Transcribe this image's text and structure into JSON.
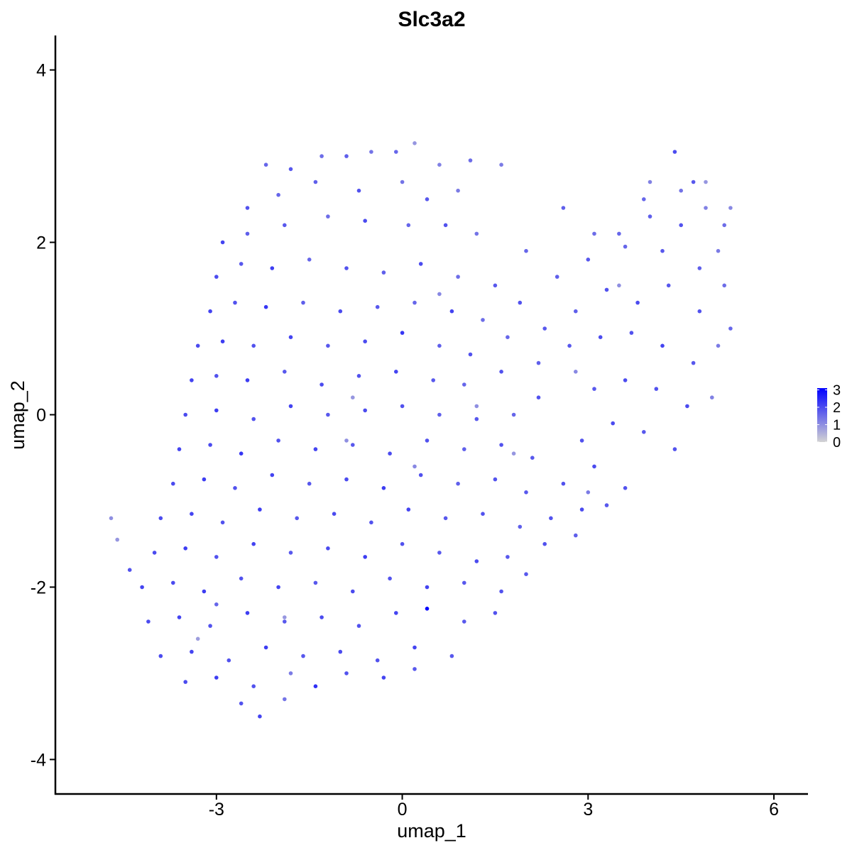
{
  "chart_data": {
    "type": "scatter",
    "title": "Slc3a2",
    "xlabel": "umap_1",
    "ylabel": "umap_2",
    "xlim": [
      -5.6,
      6.55
    ],
    "ylim": [
      -4.4,
      4.4
    ],
    "x_ticks": [
      -3,
      0,
      3,
      6
    ],
    "y_ticks": [
      -4,
      -2,
      0,
      2,
      4
    ],
    "x_tick_labels": [
      "-3",
      "0",
      "3",
      "6"
    ],
    "y_tick_labels": [
      "-4",
      "-2",
      "0",
      "2",
      "4"
    ],
    "grid": false,
    "legend": {
      "placement": "right",
      "type": "colorbar",
      "range": [
        0,
        3.1
      ],
      "ticks": [
        0,
        1,
        2,
        3
      ],
      "tick_labels": [
        "0",
        "1",
        "2",
        "3"
      ],
      "colors": {
        "low": "#d3d3d3",
        "high": "#0000ff"
      }
    },
    "point_color_scale": "expression",
    "points": [
      [
        -2.2,
        2.9,
        1.6
      ],
      [
        -1.8,
        2.85,
        1.8
      ],
      [
        -1.3,
        3.0,
        1.5
      ],
      [
        -0.9,
        3.0,
        1.7
      ],
      [
        -0.5,
        3.05,
        1.4
      ],
      [
        -0.1,
        3.05,
        1.6
      ],
      [
        0.2,
        3.15,
        0.9
      ],
      [
        0.6,
        2.9,
        1.2
      ],
      [
        1.1,
        2.95,
        1.5
      ],
      [
        1.6,
        2.9,
        1.3
      ],
      [
        -2.5,
        2.4,
        1.9
      ],
      [
        -2.0,
        2.55,
        1.6
      ],
      [
        -1.4,
        2.7,
        1.7
      ],
      [
        -0.7,
        2.6,
        1.9
      ],
      [
        0.0,
        2.7,
        1.4
      ],
      [
        0.4,
        2.5,
        1.8
      ],
      [
        0.9,
        2.6,
        1.3
      ],
      [
        -2.9,
        2.0,
        2.1
      ],
      [
        -2.5,
        2.1,
        1.7
      ],
      [
        -1.9,
        2.2,
        1.8
      ],
      [
        -1.2,
        2.3,
        1.5
      ],
      [
        -0.6,
        2.25,
        2.0
      ],
      [
        0.1,
        2.2,
        1.6
      ],
      [
        0.7,
        2.2,
        1.9
      ],
      [
        1.2,
        2.1,
        1.4
      ],
      [
        -3.0,
        1.6,
        2.0
      ],
      [
        -2.6,
        1.75,
        1.8
      ],
      [
        -2.1,
        1.7,
        2.2
      ],
      [
        -1.5,
        1.8,
        1.6
      ],
      [
        -0.9,
        1.7,
        1.9
      ],
      [
        -0.3,
        1.65,
        1.7
      ],
      [
        0.3,
        1.75,
        2.0
      ],
      [
        0.9,
        1.6,
        1.5
      ],
      [
        1.5,
        1.5,
        1.8
      ],
      [
        2.0,
        1.9,
        1.6
      ],
      [
        -3.1,
        1.2,
        2.1
      ],
      [
        -2.7,
        1.3,
        1.9
      ],
      [
        -2.2,
        1.25,
        2.3
      ],
      [
        -1.6,
        1.3,
        1.7
      ],
      [
        -1.0,
        1.2,
        2.0
      ],
      [
        -0.4,
        1.25,
        1.8
      ],
      [
        0.2,
        1.3,
        1.6
      ],
      [
        0.8,
        1.2,
        2.1
      ],
      [
        1.3,
        1.1,
        1.5
      ],
      [
        1.9,
        1.3,
        1.9
      ],
      [
        2.5,
        1.6,
        1.7
      ],
      [
        3.0,
        1.8,
        1.8
      ],
      [
        3.5,
        2.1,
        1.6
      ],
      [
        4.0,
        2.3,
        1.7
      ],
      [
        4.5,
        2.6,
        1.4
      ],
      [
        4.9,
        2.4,
        1.2
      ],
      [
        5.2,
        2.2,
        1.5
      ],
      [
        4.4,
        3.05,
        2.0
      ],
      [
        4.7,
        2.7,
        1.8
      ],
      [
        5.1,
        1.9,
        1.3
      ],
      [
        -3.3,
        0.8,
        2.0
      ],
      [
        -2.9,
        0.85,
        2.2
      ],
      [
        -2.4,
        0.8,
        1.9
      ],
      [
        -1.8,
        0.9,
        2.1
      ],
      [
        -1.2,
        0.8,
        1.8
      ],
      [
        -0.6,
        0.85,
        2.0
      ],
      [
        0.0,
        0.95,
        2.3
      ],
      [
        0.6,
        0.8,
        1.7
      ],
      [
        1.1,
        0.7,
        1.9
      ],
      [
        1.7,
        0.9,
        1.6
      ],
      [
        2.3,
        1.0,
        1.8
      ],
      [
        2.8,
        1.2,
        1.7
      ],
      [
        3.3,
        1.45,
        1.9
      ],
      [
        3.8,
        1.3,
        2.0
      ],
      [
        4.3,
        1.5,
        1.8
      ],
      [
        4.8,
        1.2,
        1.9
      ],
      [
        5.3,
        1.0,
        1.6
      ],
      [
        -3.4,
        0.4,
        2.1
      ],
      [
        -3.0,
        0.45,
        1.9
      ],
      [
        -2.5,
        0.4,
        2.2
      ],
      [
        -1.9,
        0.5,
        1.8
      ],
      [
        -1.3,
        0.35,
        2.0
      ],
      [
        -0.7,
        0.45,
        1.9
      ],
      [
        -0.1,
        0.5,
        2.1
      ],
      [
        0.5,
        0.4,
        1.8
      ],
      [
        1.0,
        0.35,
        1.6
      ],
      [
        1.6,
        0.5,
        1.9
      ],
      [
        2.2,
        0.6,
        1.7
      ],
      [
        2.7,
        0.8,
        1.8
      ],
      [
        3.2,
        0.9,
        2.0
      ],
      [
        3.7,
        0.95,
        1.9
      ],
      [
        4.2,
        0.8,
        2.1
      ],
      [
        4.7,
        0.6,
        1.8
      ],
      [
        5.0,
        0.2,
        1.2
      ],
      [
        -3.5,
        0.0,
        2.0
      ],
      [
        -3.0,
        0.05,
        2.2
      ],
      [
        -2.4,
        -0.05,
        1.9
      ],
      [
        -1.8,
        0.1,
        2.1
      ],
      [
        -1.2,
        0.0,
        1.8
      ],
      [
        -0.6,
        0.05,
        2.0
      ],
      [
        0.0,
        0.1,
        1.9
      ],
      [
        0.6,
        0.0,
        1.7
      ],
      [
        1.2,
        -0.05,
        1.8
      ],
      [
        1.8,
        0.0,
        1.6
      ],
      [
        2.2,
        0.2,
        1.9
      ],
      [
        3.1,
        0.3,
        1.8
      ],
      [
        3.6,
        0.4,
        2.0
      ],
      [
        4.1,
        0.3,
        1.9
      ],
      [
        4.6,
        0.1,
        2.0
      ],
      [
        -3.6,
        -0.4,
        2.1
      ],
      [
        -3.1,
        -0.35,
        2.0
      ],
      [
        -2.6,
        -0.45,
        2.3
      ],
      [
        -2.0,
        -0.3,
        1.9
      ],
      [
        -1.4,
        -0.4,
        2.1
      ],
      [
        -0.8,
        -0.35,
        1.8
      ],
      [
        -0.2,
        -0.45,
        2.0
      ],
      [
        0.4,
        -0.3,
        1.9
      ],
      [
        1.0,
        -0.4,
        1.7
      ],
      [
        1.6,
        -0.35,
        1.9
      ],
      [
        2.1,
        -0.5,
        1.8
      ],
      [
        2.9,
        -0.3,
        1.9
      ],
      [
        3.4,
        -0.1,
        2.0
      ],
      [
        3.9,
        -0.2,
        1.8
      ],
      [
        4.4,
        -0.4,
        1.9
      ],
      [
        -3.7,
        -0.8,
        2.0
      ],
      [
        -3.2,
        -0.75,
        2.2
      ],
      [
        -2.7,
        -0.85,
        1.9
      ],
      [
        -2.1,
        -0.7,
        2.1
      ],
      [
        -1.5,
        -0.8,
        1.8
      ],
      [
        -0.9,
        -0.75,
        2.0
      ],
      [
        -0.3,
        -0.85,
        2.2
      ],
      [
        0.3,
        -0.7,
        1.9
      ],
      [
        0.9,
        -0.8,
        1.7
      ],
      [
        1.5,
        -0.75,
        1.9
      ],
      [
        2.0,
        -0.9,
        1.8
      ],
      [
        2.6,
        -0.8,
        1.9
      ],
      [
        3.1,
        -0.6,
        2.0
      ],
      [
        3.6,
        -0.85,
        1.9
      ],
      [
        -4.7,
        -1.2,
        1.0
      ],
      [
        -4.6,
        -1.45,
        0.9
      ],
      [
        -4.4,
        -1.8,
        1.9
      ],
      [
        -3.9,
        -1.2,
        2.0
      ],
      [
        -3.4,
        -1.15,
        2.1
      ],
      [
        -2.9,
        -1.25,
        1.9
      ],
      [
        -2.3,
        -1.1,
        2.2
      ],
      [
        -1.7,
        -1.2,
        1.8
      ],
      [
        -1.1,
        -1.15,
        2.0
      ],
      [
        -0.5,
        -1.25,
        1.9
      ],
      [
        0.1,
        -1.1,
        2.1
      ],
      [
        0.7,
        -1.2,
        1.8
      ],
      [
        1.3,
        -1.15,
        1.9
      ],
      [
        1.9,
        -1.3,
        1.7
      ],
      [
        2.4,
        -1.2,
        1.9
      ],
      [
        2.9,
        -1.1,
        2.0
      ],
      [
        3.3,
        -1.05,
        1.8
      ],
      [
        -4.0,
        -1.6,
        2.0
      ],
      [
        -3.5,
        -1.55,
        2.2
      ],
      [
        -3.0,
        -1.65,
        1.9
      ],
      [
        -2.4,
        -1.5,
        2.1
      ],
      [
        -1.8,
        -1.6,
        1.8
      ],
      [
        -1.2,
        -1.55,
        2.0
      ],
      [
        -0.6,
        -1.65,
        2.2
      ],
      [
        0.0,
        -1.5,
        1.9
      ],
      [
        0.6,
        -1.6,
        1.8
      ],
      [
        1.2,
        -1.7,
        2.0
      ],
      [
        1.7,
        -1.65,
        1.8
      ],
      [
        2.3,
        -1.5,
        1.9
      ],
      [
        2.8,
        -1.4,
        1.7
      ],
      [
        -4.2,
        -2.0,
        2.1
      ],
      [
        -3.7,
        -1.95,
        2.0
      ],
      [
        -3.2,
        -2.05,
        2.2
      ],
      [
        -2.6,
        -1.9,
        1.9
      ],
      [
        -2.0,
        -2.0,
        2.1
      ],
      [
        -1.4,
        -1.95,
        1.8
      ],
      [
        -0.8,
        -2.05,
        2.0
      ],
      [
        -0.2,
        -1.9,
        1.9
      ],
      [
        0.4,
        -2.0,
        2.1
      ],
      [
        1.0,
        -1.95,
        1.8
      ],
      [
        1.6,
        -2.05,
        1.9
      ],
      [
        2.0,
        -1.85,
        1.8
      ],
      [
        -4.1,
        -2.4,
        2.0
      ],
      [
        -3.6,
        -2.35,
        2.1
      ],
      [
        -3.1,
        -2.45,
        1.9
      ],
      [
        -2.5,
        -2.3,
        2.2
      ],
      [
        -1.9,
        -2.4,
        1.8
      ],
      [
        -1.3,
        -2.35,
        2.0
      ],
      [
        -0.7,
        -2.45,
        1.9
      ],
      [
        -0.1,
        -2.3,
        2.1
      ],
      [
        0.4,
        -2.25,
        3.1
      ],
      [
        1.0,
        -2.4,
        1.8
      ],
      [
        1.5,
        -2.3,
        1.9
      ],
      [
        -3.9,
        -2.8,
        2.0
      ],
      [
        -3.4,
        -2.75,
        2.1
      ],
      [
        -2.8,
        -2.85,
        1.9
      ],
      [
        -2.2,
        -2.7,
        2.2
      ],
      [
        -1.6,
        -2.8,
        1.8
      ],
      [
        -1.0,
        -2.75,
        2.0
      ],
      [
        -0.4,
        -2.85,
        1.9
      ],
      [
        0.2,
        -2.7,
        2.1
      ],
      [
        0.8,
        -2.8,
        1.8
      ],
      [
        -3.5,
        -3.1,
        2.0
      ],
      [
        -3.0,
        -3.05,
        2.2
      ],
      [
        -2.4,
        -3.15,
        1.9
      ],
      [
        -1.8,
        -3.0,
        1.3
      ],
      [
        -1.4,
        -3.15,
        2.4
      ],
      [
        -0.9,
        -3.0,
        1.9
      ],
      [
        -0.3,
        -3.05,
        2.1
      ],
      [
        0.2,
        -2.95,
        1.8
      ],
      [
        -2.3,
        -3.5,
        2.1
      ],
      [
        -2.6,
        -3.35,
        1.9
      ],
      [
        -1.9,
        -3.3,
        1.4
      ],
      [
        -3.3,
        -2.6,
        0.8
      ],
      [
        -3.0,
        -2.2,
        1.6
      ],
      [
        -1.9,
        -2.35,
        0.9
      ],
      [
        -0.8,
        0.2,
        0.9
      ],
      [
        0.6,
        1.4,
        1.1
      ],
      [
        1.2,
        0.1,
        1.0
      ],
      [
        2.8,
        0.5,
        1.1
      ],
      [
        3.5,
        1.5,
        1.0
      ],
      [
        4.0,
        2.7,
        1.2
      ],
      [
        4.9,
        2.7,
        0.9
      ],
      [
        5.3,
        2.4,
        1.1
      ],
      [
        5.1,
        0.8,
        1.3
      ],
      [
        -0.9,
        -0.3,
        1.0
      ],
      [
        0.2,
        -0.6,
        1.1
      ],
      [
        1.8,
        -0.45,
        0.9
      ],
      [
        3.0,
        -0.9,
        1.3
      ],
      [
        3.9,
        2.5,
        1.6
      ],
      [
        4.5,
        2.2,
        1.9
      ],
      [
        4.8,
        1.7,
        1.7
      ],
      [
        5.2,
        1.5,
        1.5
      ],
      [
        4.2,
        1.9,
        1.8
      ],
      [
        3.6,
        1.95,
        1.6
      ],
      [
        3.1,
        2.1,
        1.5
      ],
      [
        2.6,
        2.4,
        1.7
      ]
    ]
  }
}
